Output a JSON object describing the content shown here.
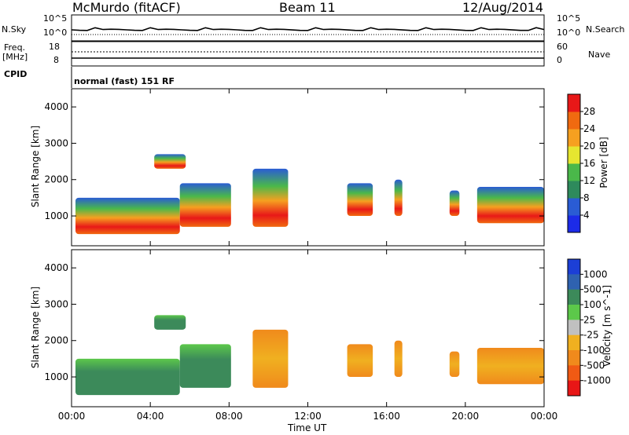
{
  "header": {
    "station": "McMurdo (fitACF)",
    "beam": "Beam 11",
    "date": "12/Aug/2014"
  },
  "strip_labels": {
    "nsky": "N.Sky",
    "nsearch": "N.Search",
    "freq_line1": "Freq.",
    "freq_line2": "[MHz]",
    "nave": "Nave",
    "cpid": "CPID",
    "cpid_value": "normal (fast) 151 RF"
  },
  "strip_ticks": {
    "noise_left": [
      "10^5",
      "10^0"
    ],
    "noise_right": [
      "10^5",
      "10^0"
    ],
    "freq_left": [
      "18",
      "8"
    ],
    "nave_right": [
      "60",
      "0"
    ]
  },
  "chart_data": [
    {
      "type": "heatmap",
      "title": "",
      "xlabel": "",
      "ylabel": "Slant Range [km]",
      "colorbar_label": "Power [dB]",
      "colorbar_ticks": [
        "4",
        "8",
        "12",
        "16",
        "20",
        "24",
        "28"
      ],
      "colorbar_colors": [
        "#1c2be8",
        "#2a5cd4",
        "#2e8a5c",
        "#4ab84a",
        "#e6e630",
        "#f6a020",
        "#f06a10",
        "#e81818"
      ],
      "x_range": [
        "00:00",
        "24:00"
      ],
      "y_range": [
        180,
        4500
      ],
      "yticks": [
        1000,
        2000,
        3000,
        4000
      ]
    },
    {
      "type": "heatmap",
      "title": "",
      "xlabel": "Time UT",
      "ylabel": "Slant Range [km]",
      "colorbar_label": "Velocity [m s^-1]",
      "colorbar_ticks": [
        "1000",
        "500",
        "100",
        "25",
        "-25",
        "-100",
        "-500",
        "-1000"
      ],
      "colorbar_colors": [
        "#1c3fd6",
        "#2f62b0",
        "#3c8a5a",
        "#5cc84a",
        "#c0c0c0",
        "#f0b020",
        "#f08a1c",
        "#f05a14",
        "#e81616"
      ],
      "xticks": [
        "00:00",
        "04:00",
        "08:00",
        "12:00",
        "16:00",
        "20:00",
        "00:00"
      ],
      "y_range": [
        180,
        4500
      ],
      "yticks": [
        1000,
        2000,
        3000,
        4000
      ]
    }
  ],
  "echo_regions": [
    {
      "start_h": 0.2,
      "end_h": 5.5,
      "rmin": 500,
      "rmax": 1500
    },
    {
      "start_h": 5.5,
      "end_h": 8.1,
      "rmin": 700,
      "rmax": 1900
    },
    {
      "start_h": 4.2,
      "end_h": 5.8,
      "rmin": 2300,
      "rmax": 2700
    },
    {
      "start_h": 9.2,
      "end_h": 11.0,
      "rmin": 700,
      "rmax": 2300
    },
    {
      "start_h": 14.0,
      "end_h": 15.3,
      "rmin": 1000,
      "rmax": 1900
    },
    {
      "start_h": 16.4,
      "end_h": 16.8,
      "rmin": 1000,
      "rmax": 2000
    },
    {
      "start_h": 19.2,
      "end_h": 19.7,
      "rmin": 1000,
      "rmax": 1700
    },
    {
      "start_h": 20.6,
      "end_h": 24.0,
      "rmin": 800,
      "rmax": 1800
    }
  ]
}
